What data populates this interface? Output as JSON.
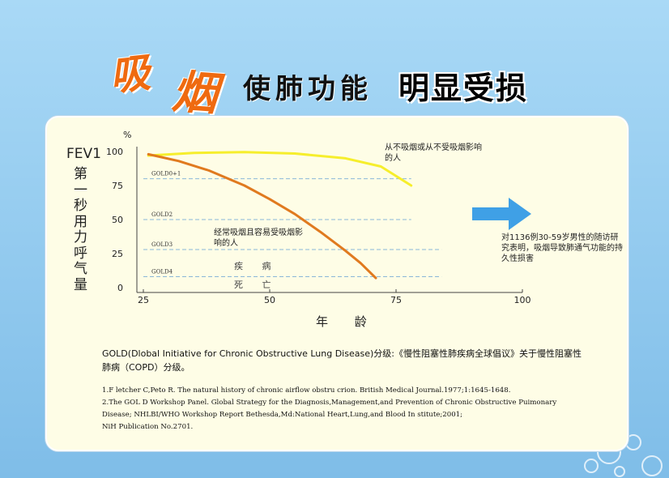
{
  "title": {
    "xi": "吸",
    "yan": "烟",
    "middle": "使肺功能",
    "end": "明显受损"
  },
  "colors": {
    "background": "#8ec8ee",
    "panel": "#fefde6",
    "nonsmoker_line": "#f6ee2c",
    "smoker_line": "#e07a1f",
    "dashed_lines": "#8ab7d8",
    "arrow": "#3fa0e6"
  },
  "chart_data": {
    "type": "line",
    "title": "",
    "ylabel_top": "FEV1",
    "ylabel_bottom": "第一秒用力呼气量",
    "y_unit": "%",
    "xlabel": "年 龄",
    "xlim": [
      25,
      100
    ],
    "ylim": [
      0,
      100
    ],
    "xticks": [
      25,
      50,
      75,
      100
    ],
    "yticks": [
      0,
      25,
      50,
      75,
      100
    ],
    "series": [
      {
        "name": "从不吸烟或从不受吸烟影响的人",
        "color": "#f6ee2c",
        "x": [
          26,
          35,
          45,
          55,
          65,
          72,
          78
        ],
        "y": [
          97,
          99,
          99.5,
          98.5,
          95,
          89,
          75
        ]
      },
      {
        "name": "经常吸烟且容易受吸烟影响的人",
        "color": "#e07a1f",
        "x": [
          26,
          32,
          38,
          45,
          50,
          55,
          60,
          65,
          68,
          71
        ],
        "y": [
          98,
          93,
          86,
          75,
          65,
          54,
          41,
          27,
          18,
          7
        ]
      }
    ],
    "reference_lines": [
      {
        "label": "GOLD0+1",
        "y": 80,
        "x_end": 78
      },
      {
        "label": "GOLD2",
        "y": 50,
        "x_end": 78
      },
      {
        "label": "GOLD3",
        "y": 28,
        "x_end": 84
      },
      {
        "label": "GOLD4",
        "y": 8,
        "x_end": 84
      }
    ],
    "annotations": {
      "sick": "疾 病",
      "death": "死 亡"
    }
  },
  "notes": {
    "nonsmoker": "从不吸烟或从不受吸烟影响的人",
    "smoker": "经常吸烟且容易受吸烟影响的人",
    "arrow_text": "对1136例30-59岁男性的随访研究表明，吸烟导致肺通气功能的持久性损害"
  },
  "gold_description": "GOLD(Dlobal Initiative for Chronic Obstructive Lung Disease)分级:《慢性阻塞性肺疾病全球倡议》关于慢性阻塞性肺病（COPD）分级。",
  "references": [
    "1.F letcher C,Peto R. The natural history of chronic airflow obstru crion. British Medical Journal.1977;1:1645-1648.",
    "2.The GOL D Workshop Panel. Global Strategy for the Diagnosis,Management,and  Prevention of Chronic Obstructive Puimonary Disease; NHLBI/WHO Workshop Report Bethesda,Md:National Heart,Lung,and Blood In stitute;2001;",
    "NiH Publication No.2701."
  ]
}
